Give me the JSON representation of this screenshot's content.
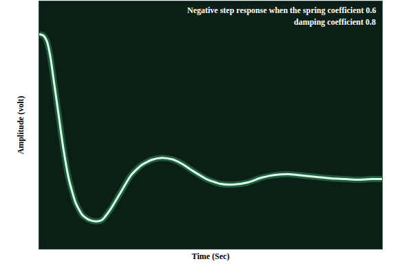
{
  "chart_data": {
    "type": "line",
    "title": "Negative step response when the spring coefficient 0.6",
    "subtitle": "damping coefficient 0.8",
    "x_label": "Time (Sec)",
    "y_label": "Amplitude (volt)",
    "x": [
      0,
      0.12,
      0.22,
      0.32,
      0.42,
      0.56,
      0.7,
      0.86,
      1.06,
      1.26,
      1.46,
      1.66,
      1.82,
      2.06,
      2.36,
      2.66,
      2.96,
      3.26,
      3.56,
      3.86,
      4.16,
      4.46,
      4.86,
      5.26,
      5.66,
      6.06,
      6.46,
      6.86,
      7.26,
      7.66,
      8.06,
      8.46,
      8.86,
      9.26,
      9.66,
      9.96
    ],
    "values": [
      4.24,
      4.2,
      4.04,
      3.6,
      2.9,
      1.9,
      0.9,
      0,
      -0.7,
      -1.06,
      -1.2,
      -1.24,
      -1.2,
      -0.9,
      -0.4,
      0.1,
      0.4,
      0.56,
      0.62,
      0.58,
      0.44,
      0.24,
      0,
      -0.14,
      -0.16,
      -0.1,
      0.04,
      0.12,
      0.14,
      0.1,
      0.06,
      0.02,
      0,
      -0.02,
      0,
      0
    ],
    "color": "#d8ffe8",
    "xlim": [
      0,
      9.96
    ],
    "ylim": [
      -2.04,
      5.2
    ],
    "grid": false,
    "tick_labels": false
  }
}
